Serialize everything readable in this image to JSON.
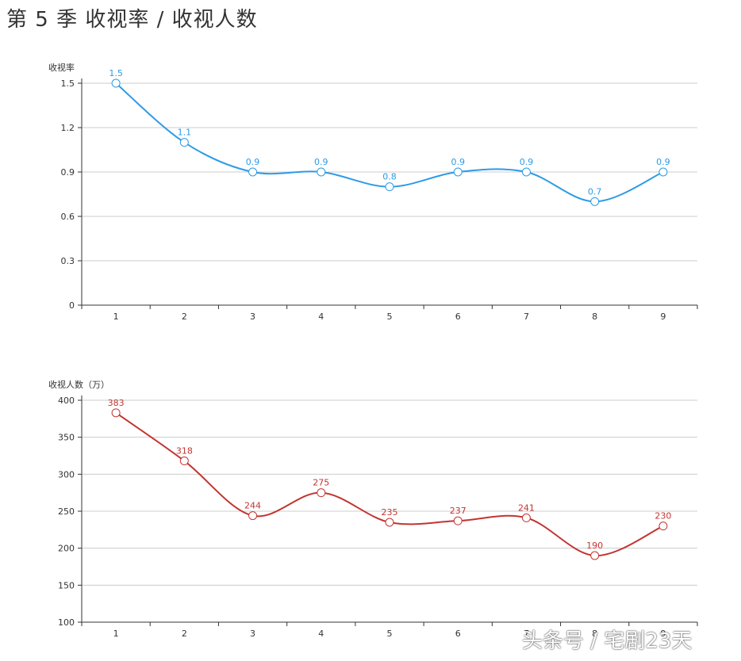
{
  "page": {
    "title": "第 5 季 收视率 / 收视人数",
    "watermark": "头条号 / 宅剧23天"
  },
  "colors": {
    "rating_series": "#2d9be6",
    "viewers_series": "#c23531",
    "axis": "#333333",
    "grid": "#cccccc"
  },
  "chart_data": [
    {
      "type": "line",
      "smooth": true,
      "ylabel": "收视率",
      "xlabel": "",
      "categories": [
        "1",
        "2",
        "3",
        "4",
        "5",
        "6",
        "7",
        "8",
        "9"
      ],
      "y_ticks": [
        "0",
        "0.3",
        "0.6",
        "0.9",
        "1.2",
        "1.5"
      ],
      "ylim": [
        0,
        1.5
      ],
      "grid": true,
      "series": [
        {
          "values": [
            1.5,
            1.1,
            0.9,
            0.9,
            0.8,
            0.9,
            0.9,
            0.7,
            0.9
          ],
          "labels": [
            "1.5",
            "1.1",
            "0.9",
            "0.9",
            "0.8",
            "0.9",
            "0.9",
            "0.7",
            "0.9"
          ]
        }
      ]
    },
    {
      "type": "line",
      "smooth": true,
      "ylabel": "收视人数（万）",
      "xlabel": "",
      "categories": [
        "1",
        "2",
        "3",
        "4",
        "5",
        "6",
        "7",
        "8",
        "9"
      ],
      "y_ticks": [
        "100",
        "150",
        "200",
        "250",
        "300",
        "350",
        "400"
      ],
      "ylim": [
        100,
        400
      ],
      "grid": true,
      "series": [
        {
          "values": [
            383,
            318,
            244,
            275,
            235,
            237,
            241,
            190,
            230
          ],
          "labels": [
            "383",
            "318",
            "244",
            "275",
            "235",
            "237",
            "241",
            "190",
            "230"
          ]
        }
      ]
    }
  ]
}
